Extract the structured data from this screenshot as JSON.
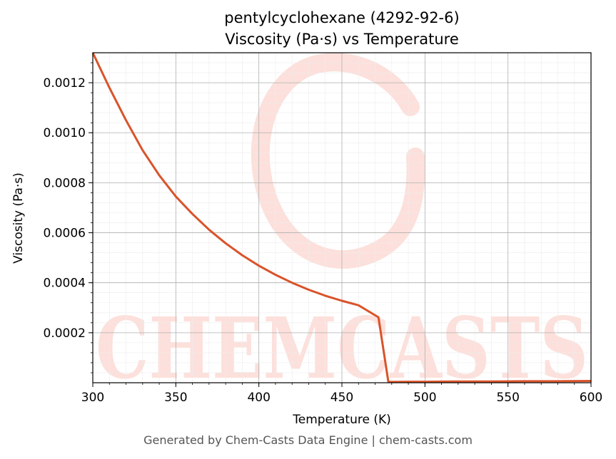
{
  "chart_data": {
    "type": "line",
    "title": "pentylcyclohexane (4292-92-6)",
    "subtitle": "Viscosity (Pa·s) vs Temperature",
    "xlabel": "Temperature (K)",
    "ylabel": "Viscosity (Pa·s)",
    "xlim": [
      300,
      600
    ],
    "ylim": [
      0.0,
      0.00132
    ],
    "x_ticks": [
      300,
      350,
      400,
      450,
      500,
      550,
      600
    ],
    "x_tick_labels": [
      "300",
      "350",
      "400",
      "450",
      "500",
      "550",
      "600"
    ],
    "y_ticks": [
      0.0002,
      0.0004,
      0.0006,
      0.0008,
      0.001,
      0.0012
    ],
    "y_tick_labels": [
      "0.0002",
      "0.0004",
      "0.0006",
      "0.0008",
      "0.0010",
      "0.0012"
    ],
    "grid": true,
    "series": [
      {
        "color": "#d9532a",
        "x": [
          300,
          310,
          320,
          330,
          340,
          350,
          360,
          370,
          380,
          390,
          400,
          410,
          420,
          430,
          440,
          450,
          460,
          472,
          478,
          490,
          500,
          520,
          540,
          560,
          580,
          600
        ],
        "y": [
          0.00132,
          0.00118,
          0.00105,
          0.00093,
          0.00083,
          0.000745,
          0.000675,
          0.000612,
          0.000558,
          0.00051,
          0.000468,
          0.000432,
          0.0004,
          0.000372,
          0.000348,
          0.000328,
          0.00031,
          0.000262,
          3e-06,
          4e-06,
          4e-06,
          5e-06,
          5e-06,
          6e-06,
          6e-06,
          7e-06
        ]
      }
    ]
  },
  "watermark": {
    "text": "CHEMCASTS",
    "color": "#fde0db"
  },
  "footer": "Generated by Chem-Casts Data Engine | chem-casts.com"
}
